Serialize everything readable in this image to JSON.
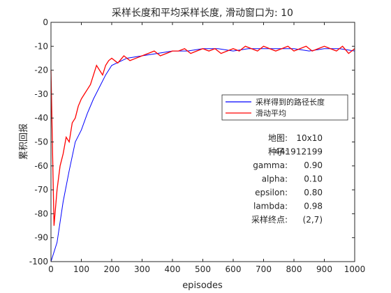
{
  "chart_data": {
    "type": "line",
    "title": "采样长度和平均采样长度, 滑动窗口为: 10",
    "xlabel": "episodes",
    "ylabel": "累积回报",
    "xlim": [
      0,
      1000
    ],
    "ylim": [
      -100,
      0
    ],
    "xticks": [
      0,
      100,
      200,
      300,
      400,
      500,
      600,
      700,
      800,
      900,
      1000
    ],
    "yticks": [
      0,
      -10,
      -20,
      -30,
      -40,
      -50,
      -60,
      -70,
      -80,
      -90,
      -100
    ],
    "grid": false,
    "legend_position": "center-right",
    "series": [
      {
        "name": "采样得到的路径长度",
        "color": "#0000ff",
        "x": [
          0,
          20,
          40,
          60,
          80,
          100,
          120,
          140,
          160,
          180,
          200,
          250,
          300,
          350,
          400,
          450,
          500,
          550,
          600,
          650,
          700,
          750,
          800,
          850,
          900,
          950,
          1000
        ],
        "y": [
          -100,
          -92,
          -75,
          -62,
          -50,
          -45,
          -38,
          -32,
          -27,
          -22,
          -18,
          -15,
          -14,
          -13,
          -12,
          -12,
          -11,
          -11,
          -12,
          -11,
          -11,
          -11,
          -11,
          -12,
          -11,
          -11,
          -12
        ]
      },
      {
        "name": "滑动平均",
        "color": "#ff0000",
        "x": [
          0,
          10,
          20,
          30,
          40,
          50,
          60,
          70,
          80,
          90,
          100,
          110,
          120,
          130,
          140,
          150,
          160,
          170,
          180,
          190,
          200,
          220,
          240,
          260,
          280,
          300,
          320,
          340,
          360,
          380,
          400,
          420,
          440,
          460,
          480,
          500,
          520,
          540,
          560,
          580,
          600,
          620,
          640,
          660,
          680,
          700,
          720,
          740,
          760,
          780,
          800,
          820,
          840,
          860,
          880,
          900,
          920,
          940,
          960,
          980,
          1000
        ],
        "y": [
          -20,
          -85,
          -70,
          -60,
          -55,
          -48,
          -50,
          -42,
          -40,
          -35,
          -32,
          -30,
          -28,
          -26,
          -22,
          -18,
          -20,
          -22,
          -18,
          -16,
          -15,
          -17,
          -14,
          -16,
          -15,
          -14,
          -13,
          -12,
          -14,
          -13,
          -12,
          -12,
          -11,
          -13,
          -12,
          -11,
          -12,
          -11,
          -13,
          -12,
          -11,
          -12,
          -10,
          -11,
          -12,
          -10,
          -11,
          -12,
          -11,
          -10,
          -12,
          -11,
          -10,
          -12,
          -11,
          -10,
          -11,
          -12,
          -10,
          -13,
          -11
        ]
      }
    ]
  },
  "info_box": [
    {
      "label": "地图:",
      "value": "10x10"
    },
    {
      "label": "种子:",
      "value": "441912199"
    },
    {
      "label": "gamma:",
      "value": "0.90"
    },
    {
      "label": "alpha:",
      "value": "0.10"
    },
    {
      "label": "epsilon:",
      "value": "0.80"
    },
    {
      "label": "lambda:",
      "value": "0.98"
    },
    {
      "label": "采样终点:",
      "value": "(2,7)"
    }
  ]
}
